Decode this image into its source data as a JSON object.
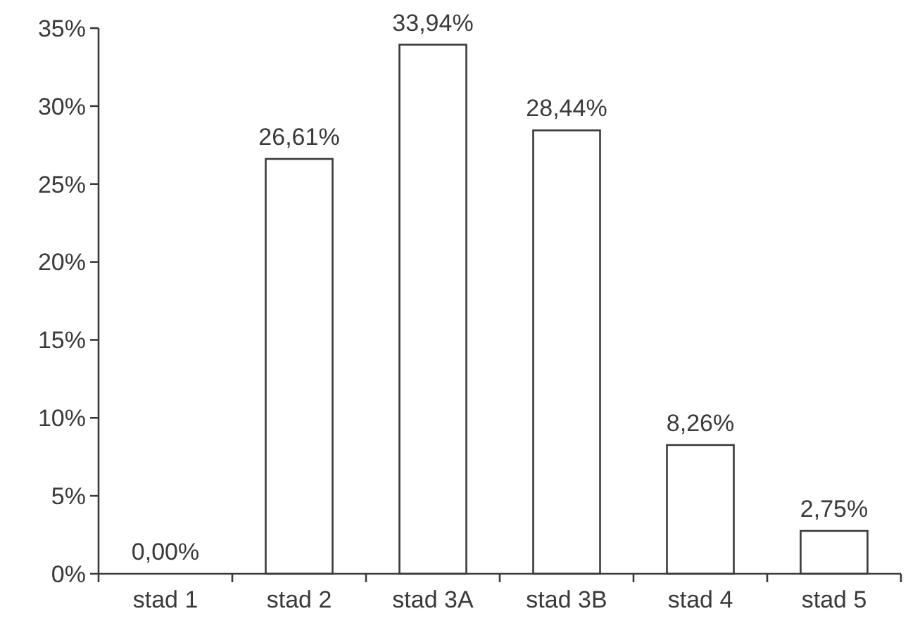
{
  "chart_data": {
    "type": "bar",
    "categories": [
      "stad 1",
      "stad 2",
      "stad 3A",
      "stad 3B",
      "stad 4",
      "stad 5"
    ],
    "values": [
      0,
      26.61,
      33.94,
      28.44,
      8.26,
      2.75
    ],
    "value_labels": [
      "0,00%",
      "26,61%",
      "33,94%",
      "28,44%",
      "8,26%",
      "2,75%"
    ],
    "color": "#ffffff",
    "ylim": [
      0,
      35
    ],
    "yticks": [
      {
        "value": 0,
        "label": "0%"
      },
      {
        "value": 5,
        "label": "5%"
      },
      {
        "value": 10,
        "label": "10%"
      },
      {
        "value": 15,
        "label": "15%"
      },
      {
        "value": 20,
        "label": "20%"
      },
      {
        "value": 25,
        "label": "25%"
      },
      {
        "value": 30,
        "label": "30%"
      },
      {
        "value": 35,
        "label": "35%"
      }
    ],
    "grid": false
  }
}
